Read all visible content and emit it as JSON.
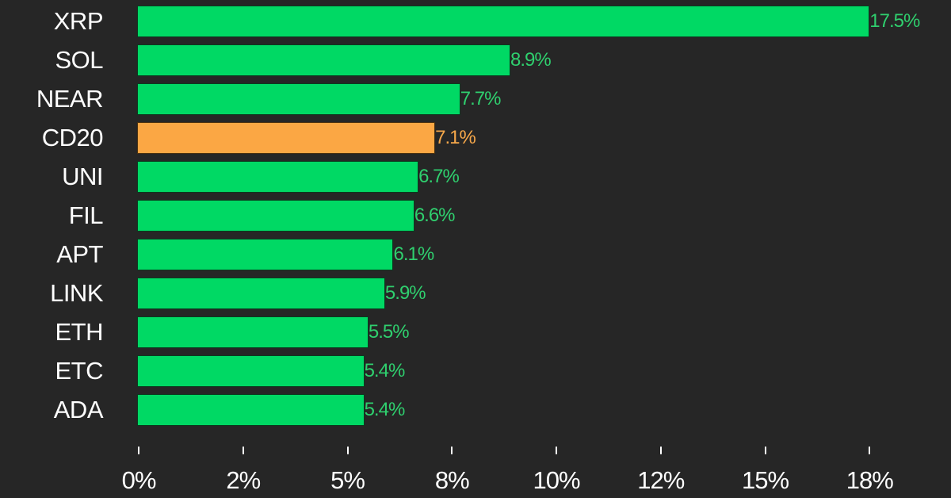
{
  "chart_data": {
    "type": "bar",
    "orientation": "horizontal",
    "title": "",
    "xlabel": "",
    "ylabel": "",
    "categories": [
      "XRP",
      "SOL",
      "NEAR",
      "CD20",
      "UNI",
      "FIL",
      "APT",
      "LINK",
      "ETH",
      "ETC",
      "ADA"
    ],
    "values": [
      17.5,
      8.9,
      7.7,
      7.1,
      6.7,
      6.6,
      6.1,
      5.9,
      5.5,
      5.4,
      5.4
    ],
    "value_labels": [
      "17.5%",
      "8.9%",
      "7.7%",
      "7.1%",
      "6.7%",
      "6.6%",
      "6.1%",
      "5.9%",
      "5.5%",
      "5.4%",
      "5.4%"
    ],
    "highlight": [
      "CD20"
    ],
    "colors": {
      "default": "#00d964",
      "highlight": "#fba744",
      "background": "#262626",
      "default_label": "#2fcf6e",
      "highlight_label": "#f7a84a"
    },
    "x_ticks": [
      0,
      2.5,
      5,
      7.5,
      10,
      12.5,
      15,
      17.5
    ],
    "x_tick_labels": [
      "0%",
      "2%",
      "5%",
      "8%",
      "10%",
      "12%",
      "15%",
      "18%"
    ],
    "xlim": [
      0,
      19
    ],
    "grid": false,
    "legend": null
  }
}
